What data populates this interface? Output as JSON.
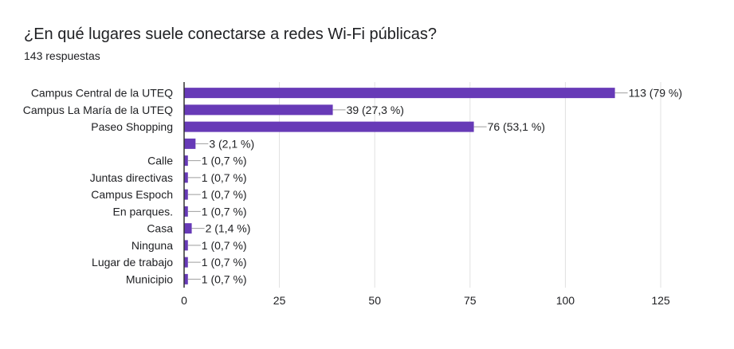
{
  "header": {
    "title": "¿En qué lugares suele conectarse a redes Wi-Fi públicas?",
    "subtitle": "143 respuestas"
  },
  "colors": {
    "bar": "#673ab7",
    "grid": "#e0e0e0",
    "axis": "#333333",
    "text": "#202124"
  },
  "chart_data": {
    "type": "bar",
    "orientation": "horizontal",
    "title": "¿En qué lugares suele conectarse a redes Wi-Fi públicas?",
    "subtitle": "143 respuestas",
    "categories": [
      "Campus Central de la UTEQ",
      "Campus La María de la UTEQ",
      "Paseo Shopping",
      "",
      "Calle",
      "Juntas directivas",
      "Campus Espoch",
      "En parques.",
      "Casa",
      "Ninguna",
      "Lugar de trabajo",
      "Municipio"
    ],
    "values": [
      113,
      39,
      76,
      3,
      1,
      1,
      1,
      1,
      2,
      1,
      1,
      1
    ],
    "value_labels": [
      "113 (79 %)",
      "39 (27,3 %)",
      "76 (53,1 %)",
      "3 (2,1 %)",
      "1 (0,7 %)",
      "1 (0,7 %)",
      "1 (0,7 %)",
      "1 (0,7 %)",
      "2 (1,4 %)",
      "1 (0,7 %)",
      "1 (0,7 %)",
      "1 (0,7 %)"
    ],
    "xlim": [
      0,
      125
    ],
    "xticks": [
      0,
      25,
      50,
      75,
      100,
      125
    ],
    "xlabel": "",
    "ylabel": "",
    "grid": true,
    "legend": "none"
  }
}
